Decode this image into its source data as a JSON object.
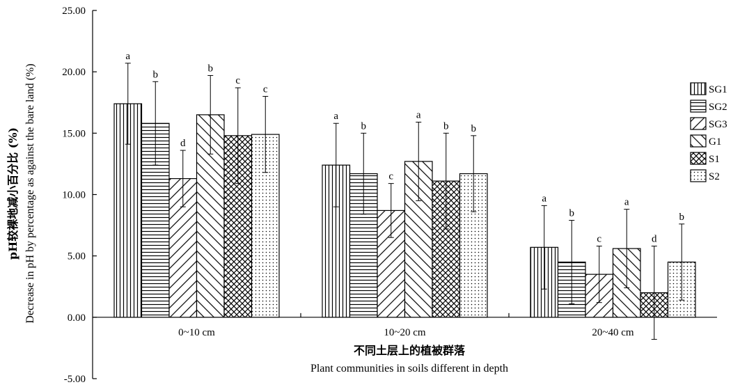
{
  "chart_data": {
    "type": "bar",
    "categories": [
      "0~10 cm",
      "10~20 cm",
      "20~40 cm"
    ],
    "ylim": [
      -5,
      25
    ],
    "yticks": [
      "25.00",
      "20.00",
      "15.00",
      "10.00",
      "5.00",
      "0.00",
      "-5.00"
    ],
    "ylabel_cn": "pH较裸地减小百分比 (%)",
    "ylabel_en": "Decrease in pH by percentage as against the bare land (%)",
    "xlabel_cn": "不同土层上的植被群落",
    "xlabel_en": "Plant communities in soils different in depth",
    "legend_position": "right",
    "series": [
      {
        "name": "SG1",
        "pattern": "vertical",
        "values": [
          17.4,
          12.4,
          5.7
        ],
        "errors": [
          3.3,
          3.4,
          3.4
        ],
        "letters": [
          "a",
          "a",
          "a"
        ]
      },
      {
        "name": "SG2",
        "pattern": "horizontal",
        "values": [
          15.8,
          11.7,
          4.5
        ],
        "errors": [
          3.4,
          3.3,
          3.4
        ],
        "letters": [
          "b",
          "b",
          "b"
        ]
      },
      {
        "name": "SG3",
        "pattern": "backslash",
        "values": [
          11.3,
          8.7,
          3.5
        ],
        "errors": [
          2.3,
          2.2,
          2.3
        ],
        "letters": [
          "d",
          "c",
          "c"
        ]
      },
      {
        "name": "G1",
        "pattern": "slash",
        "values": [
          16.5,
          12.7,
          5.6
        ],
        "errors": [
          3.2,
          3.2,
          3.2
        ],
        "letters": [
          "b",
          "a",
          "a"
        ]
      },
      {
        "name": "S1",
        "pattern": "cross",
        "values": [
          14.8,
          11.1,
          2.0
        ],
        "errors": [
          3.9,
          3.9,
          3.8
        ],
        "letters": [
          "c",
          "b",
          "d"
        ]
      },
      {
        "name": "S2",
        "pattern": "dots",
        "values": [
          14.9,
          11.7,
          4.5
        ],
        "errors": [
          3.1,
          3.1,
          3.1
        ],
        "letters": [
          "c",
          "b",
          "b"
        ]
      }
    ]
  }
}
